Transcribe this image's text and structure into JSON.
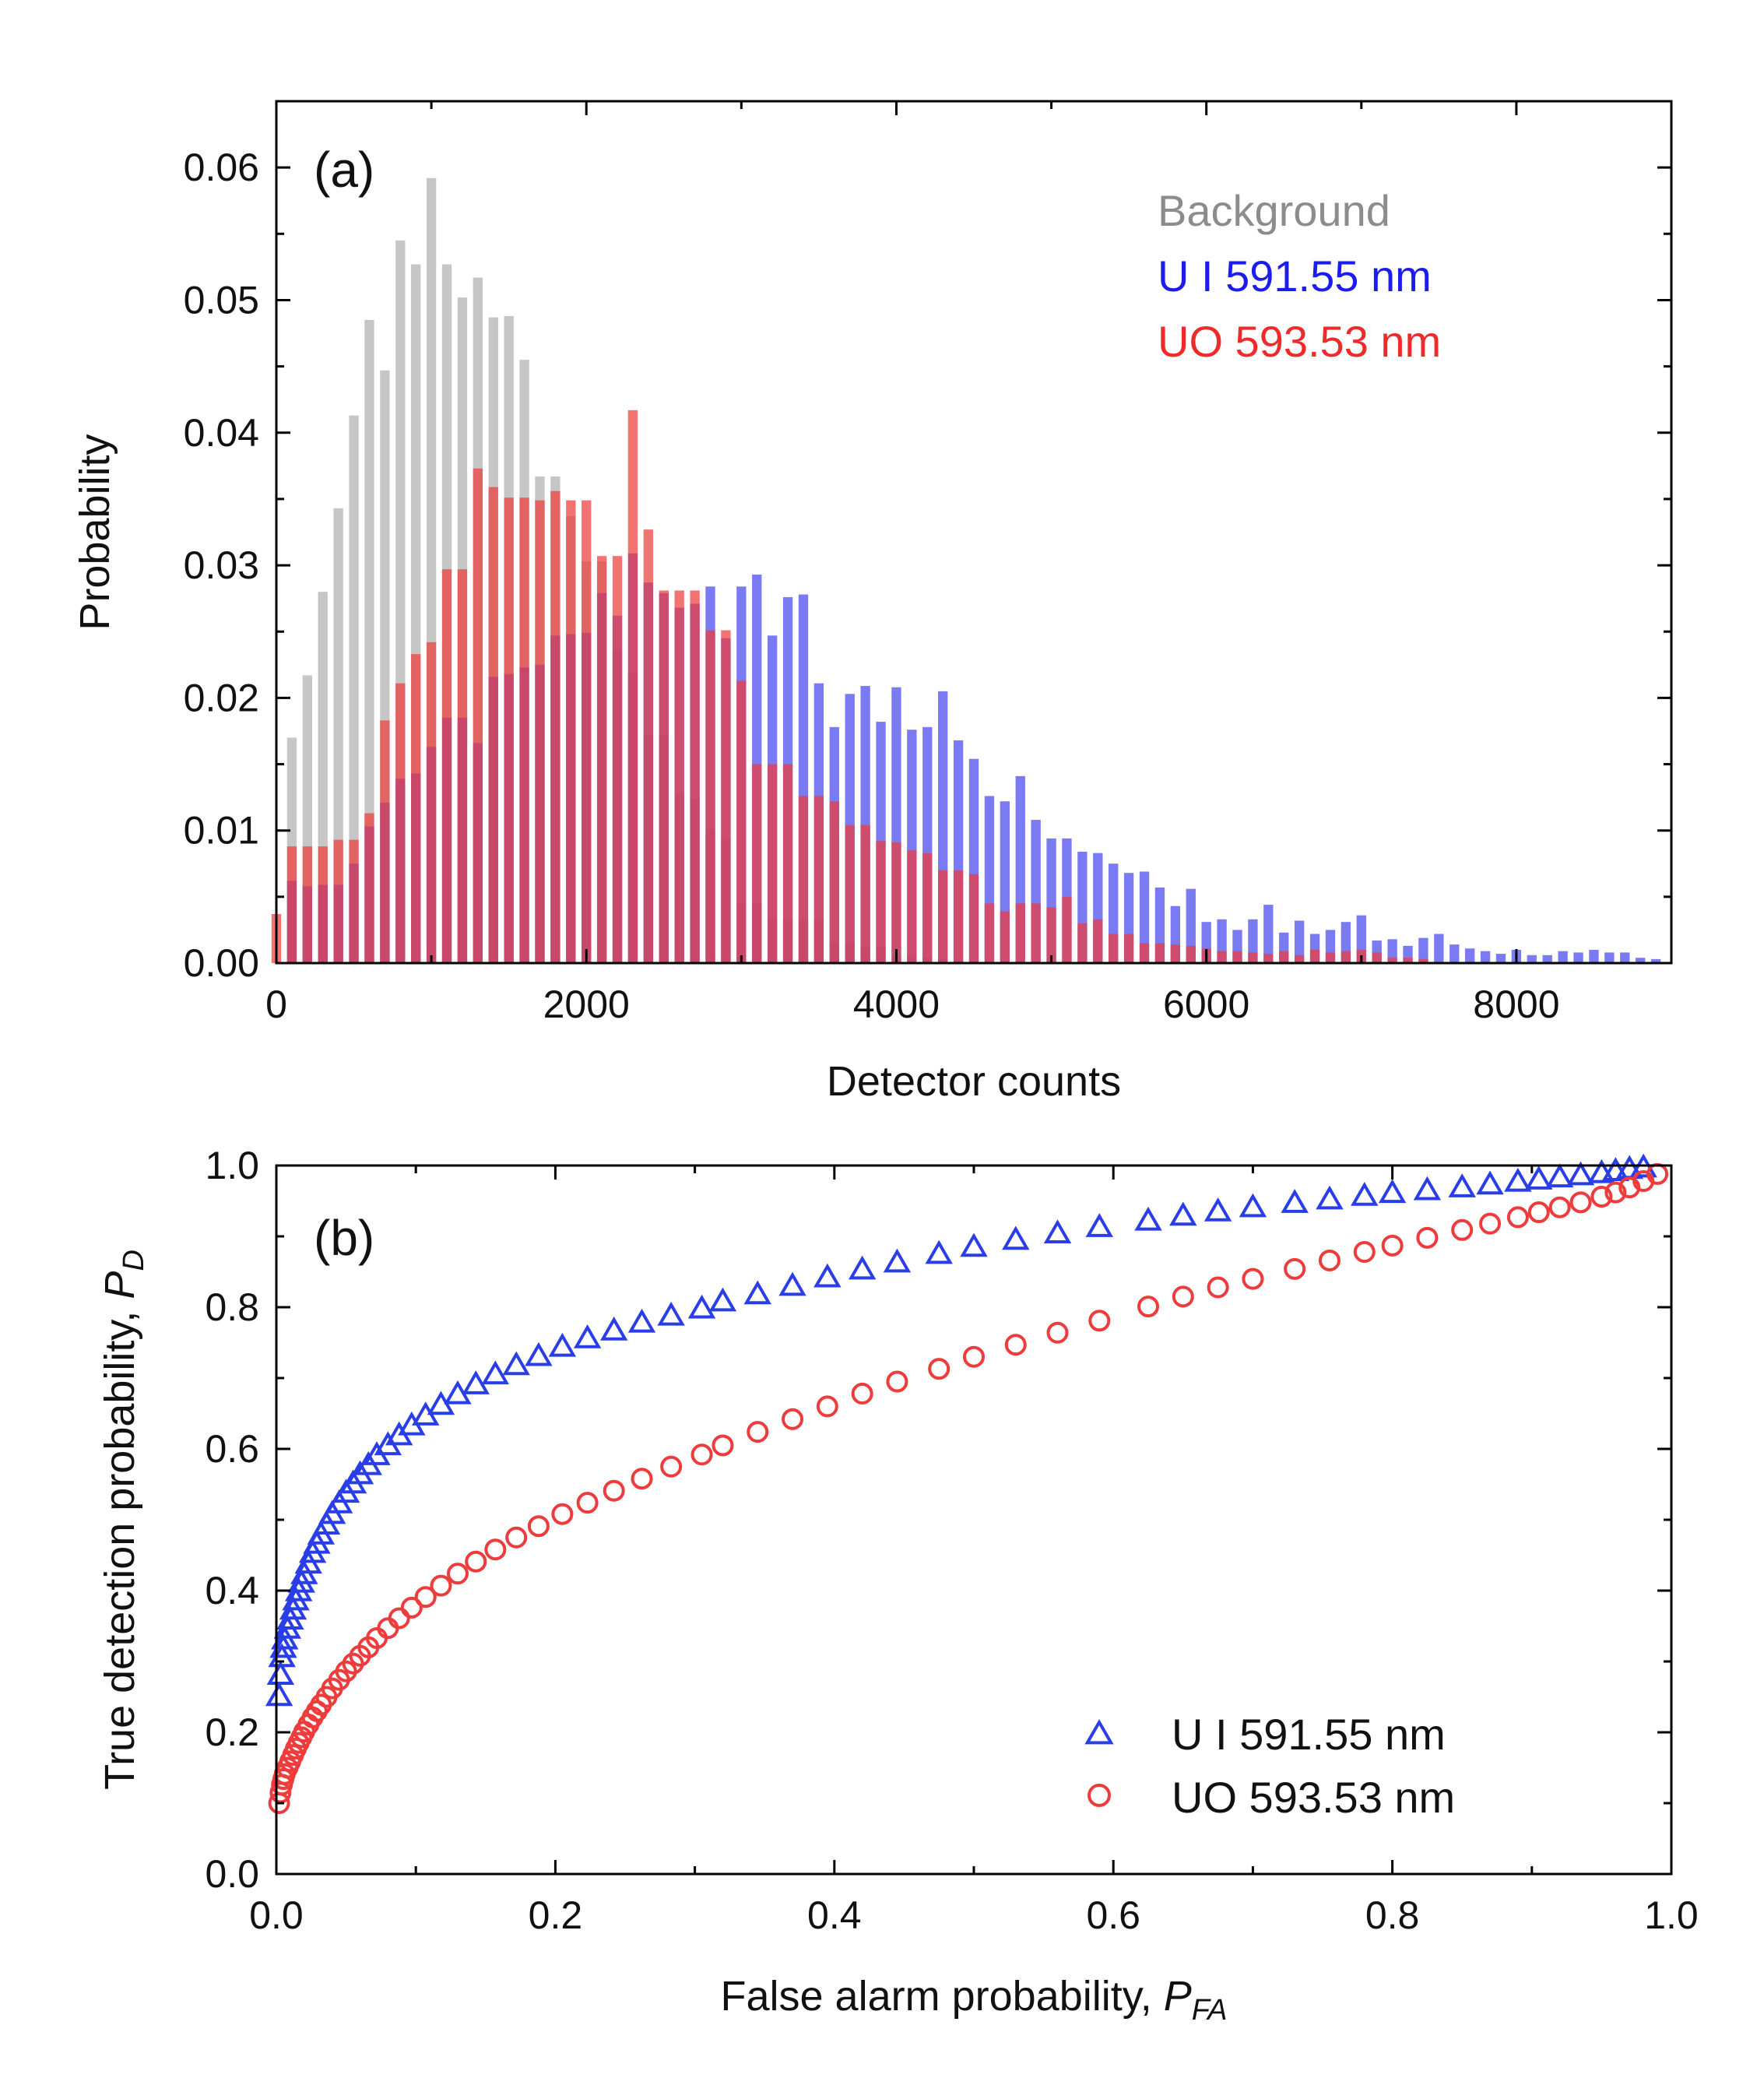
{
  "chart_data": [
    {
      "panel": "(a)",
      "type": "bar",
      "title": "",
      "xlabel": "Detector counts",
      "ylabel": "Probability",
      "xlim": [
        0,
        9000
      ],
      "ylim": [
        0,
        0.065
      ],
      "xticks": [
        0,
        2000,
        4000,
        6000,
        8000
      ],
      "xtick_labels": [
        "0",
        "2000",
        "4000",
        "6000",
        "8000"
      ],
      "yticks": [
        0,
        0.01,
        0.02,
        0.03,
        0.04,
        0.05,
        0.06
      ],
      "ytick_labels": [
        "0.00",
        "0.01",
        "0.02",
        "0.03",
        "0.04",
        "0.05",
        "0.06"
      ],
      "bin_width": 100,
      "grid": false,
      "legend_position": "top-right",
      "series": [
        {
          "name": "Background",
          "color": "#b3b3b3",
          "opacity": 0.75,
          "x": [
            100,
            200,
            300,
            400,
            500,
            600,
            700,
            800,
            900,
            1000,
            1100,
            1200,
            1300,
            1400,
            1500,
            1600,
            1700,
            1800,
            1900,
            2000,
            2100,
            2200,
            2300,
            2400,
            2500,
            2600,
            2700,
            2800,
            2900,
            3000,
            3100,
            3200,
            3300,
            3400,
            3500,
            3600,
            3700,
            3800,
            3900,
            4000,
            4100,
            4200,
            4300,
            4400
          ],
          "values": [
            0.017,
            0.0217,
            0.028,
            0.0343,
            0.0413,
            0.0485,
            0.0447,
            0.0545,
            0.0527,
            0.0592,
            0.0527,
            0.0502,
            0.0517,
            0.0487,
            0.0488,
            0.0455,
            0.0367,
            0.0367,
            0.0337,
            0.0303,
            0.0303,
            0.0235,
            0.0219,
            0.0172,
            0.0172,
            0.0128,
            0.0124,
            0.0101,
            0.0094,
            0.0045,
            0.0045,
            0.0033,
            0.0033,
            0.0033,
            0.0033,
            0.0015,
            0.0015,
            0.0012,
            0.0012,
            0.0006,
            0.0006,
            0.0004,
            0.0003,
            0.0002
          ]
        },
        {
          "name": "U I 591.55 nm",
          "color": "#4646ee",
          "opacity": 0.72,
          "x": [
            100,
            200,
            300,
            400,
            500,
            600,
            700,
            800,
            900,
            1000,
            1100,
            1200,
            1300,
            1400,
            1500,
            1600,
            1700,
            1800,
            1900,
            2000,
            2100,
            2200,
            2300,
            2400,
            2500,
            2600,
            2700,
            2800,
            2900,
            3000,
            3100,
            3200,
            3300,
            3400,
            3500,
            3600,
            3700,
            3800,
            3900,
            4000,
            4100,
            4200,
            4300,
            4400,
            4500,
            4600,
            4700,
            4800,
            4900,
            5000,
            5100,
            5200,
            5300,
            5400,
            5500,
            5600,
            5700,
            5800,
            5900,
            6000,
            6100,
            6200,
            6300,
            6400,
            6500,
            6600,
            6700,
            6800,
            6900,
            7000,
            7100,
            7200,
            7300,
            7400,
            7500,
            7600,
            7700,
            7800,
            7900,
            8000,
            8100,
            8200,
            8300,
            8400,
            8500,
            8600,
            8700,
            8800,
            8900
          ],
          "values": [
            0.0062,
            0.0058,
            0.0059,
            0.0059,
            0.0075,
            0.0103,
            0.0121,
            0.0139,
            0.0143,
            0.0163,
            0.0185,
            0.0185,
            0.0166,
            0.0216,
            0.0218,
            0.0223,
            0.0225,
            0.0247,
            0.0248,
            0.0249,
            0.0279,
            0.0262,
            0.0309,
            0.0287,
            0.0279,
            0.0268,
            0.0271,
            0.0284,
            0.0245,
            0.0284,
            0.0293,
            0.0247,
            0.0276,
            0.0278,
            0.0211,
            0.0178,
            0.0203,
            0.0209,
            0.0182,
            0.0208,
            0.0176,
            0.0178,
            0.0205,
            0.0168,
            0.0154,
            0.0126,
            0.0122,
            0.0141,
            0.0108,
            0.0094,
            0.0094,
            0.0084,
            0.0083,
            0.0075,
            0.0068,
            0.0069,
            0.0057,
            0.0043,
            0.0056,
            0.0031,
            0.0033,
            0.0025,
            0.0033,
            0.0044,
            0.0023,
            0.0032,
            0.0022,
            0.0025,
            0.0031,
            0.0036,
            0.0017,
            0.0018,
            0.0013,
            0.0019,
            0.0022,
            0.0014,
            0.0011,
            0.0009,
            0.0007,
            0.001,
            0.0006,
            0.0006,
            0.0009,
            0.0008,
            0.001,
            0.0008,
            0.0008,
            0.0004,
            0.0003
          ]
        },
        {
          "name": "UO 593.53 nm",
          "color": "#ee3b3b",
          "opacity": 0.72,
          "x": [
            0,
            100,
            200,
            300,
            400,
            500,
            600,
            700,
            800,
            900,
            1000,
            1100,
            1200,
            1300,
            1400,
            1500,
            1600,
            1700,
            1800,
            1900,
            2000,
            2100,
            2200,
            2300,
            2400,
            2500,
            2600,
            2700,
            2800,
            2900,
            3000,
            3100,
            3200,
            3300,
            3400,
            3500,
            3600,
            3700,
            3800,
            3900,
            4000,
            4100,
            4200,
            4300,
            4400,
            4500,
            4600,
            4700,
            4800,
            4900,
            5000,
            5100,
            5200,
            5300,
            5400,
            5500,
            5600,
            5700,
            5800,
            5900,
            6000,
            6100,
            6200,
            6300,
            6400,
            6500,
            6600,
            6700,
            6800,
            6900,
            7000,
            7100,
            7200,
            7300,
            7400
          ],
          "values": [
            0.0037,
            0.0088,
            0.0088,
            0.0088,
            0.0093,
            0.0093,
            0.0113,
            0.0183,
            0.0211,
            0.0233,
            0.0242,
            0.0297,
            0.0297,
            0.0373,
            0.0359,
            0.0351,
            0.0351,
            0.0349,
            0.0356,
            0.0349,
            0.0349,
            0.0307,
            0.0307,
            0.0417,
            0.0327,
            0.0281,
            0.0281,
            0.0281,
            0.0251,
            0.0251,
            0.0213,
            0.015,
            0.015,
            0.015,
            0.0126,
            0.0126,
            0.0122,
            0.0104,
            0.0104,
            0.0092,
            0.0091,
            0.0085,
            0.0083,
            0.007,
            0.007,
            0.0067,
            0.0045,
            0.0039,
            0.0045,
            0.0045,
            0.0042,
            0.005,
            0.003,
            0.0033,
            0.0022,
            0.0022,
            0.0015,
            0.0015,
            0.0014,
            0.0013,
            0.0011,
            0.0009,
            0.0009,
            0.0008,
            0.0007,
            0.0009,
            0.0006,
            0.001,
            0.0008,
            0.0009,
            0.001,
            0.0008,
            0.0004,
            0.0004,
            0.0003
          ]
        }
      ]
    },
    {
      "panel": "(b)",
      "type": "scatter",
      "title": "",
      "xlabel_text": "False alarm probability, ",
      "xlabel_symbol": "P",
      "xlabel_subscript": "FA",
      "ylabel_text": "True detection probability, ",
      "ylabel_symbol": "P",
      "ylabel_subscript": "D",
      "xlim": [
        0,
        1
      ],
      "ylim": [
        0,
        1
      ],
      "xticks": [
        0,
        0.2,
        0.4,
        0.6,
        0.8,
        1.0
      ],
      "xtick_labels": [
        "0.0",
        "0.2",
        "0.4",
        "0.6",
        "0.8",
        "1.0"
      ],
      "yticks": [
        0,
        0.2,
        0.4,
        0.6,
        0.8,
        1.0
      ],
      "ytick_labels": [
        "0.0",
        "0.2",
        "0.4",
        "0.6",
        "0.8",
        "1.0"
      ],
      "grid": false,
      "legend_position": "bottom-right",
      "series": [
        {
          "name": "U I 591.55 nm",
          "marker": "triangle",
          "color": "#2a3ee8",
          "x": [
            0.002,
            0.003,
            0.004,
            0.005,
            0.006,
            0.008,
            0.01,
            0.012,
            0.014,
            0.016,
            0.018,
            0.02,
            0.023,
            0.026,
            0.029,
            0.032,
            0.036,
            0.04,
            0.045,
            0.05,
            0.055,
            0.06,
            0.066,
            0.072,
            0.08,
            0.088,
            0.097,
            0.107,
            0.118,
            0.13,
            0.143,
            0.157,
            0.172,
            0.188,
            0.205,
            0.223,
            0.242,
            0.262,
            0.283,
            0.305,
            0.32,
            0.345,
            0.37,
            0.395,
            0.42,
            0.445,
            0.475,
            0.5,
            0.53,
            0.56,
            0.59,
            0.625,
            0.65,
            0.675,
            0.7,
            0.73,
            0.755,
            0.78,
            0.8,
            0.825,
            0.85,
            0.87,
            0.89,
            0.905,
            0.92,
            0.935,
            0.95,
            0.96,
            0.97,
            0.98
          ],
          "y": [
            0.25,
            0.28,
            0.305,
            0.318,
            0.33,
            0.345,
            0.358,
            0.372,
            0.385,
            0.398,
            0.41,
            0.422,
            0.437,
            0.452,
            0.465,
            0.478,
            0.492,
            0.507,
            0.522,
            0.537,
            0.55,
            0.563,
            0.576,
            0.59,
            0.604,
            0.618,
            0.632,
            0.646,
            0.661,
            0.676,
            0.69,
            0.704,
            0.717,
            0.73,
            0.743,
            0.755,
            0.766,
            0.777,
            0.787,
            0.797,
            0.807,
            0.817,
            0.829,
            0.841,
            0.852,
            0.862,
            0.874,
            0.884,
            0.894,
            0.903,
            0.912,
            0.921,
            0.928,
            0.934,
            0.94,
            0.946,
            0.951,
            0.956,
            0.96,
            0.964,
            0.968,
            0.972,
            0.976,
            0.979,
            0.982,
            0.985,
            0.988,
            0.991,
            0.994,
            0.996
          ]
        },
        {
          "name": "UO 593.53 nm",
          "marker": "circle",
          "color": "#ee3b3b",
          "x": [
            0.002,
            0.003,
            0.004,
            0.005,
            0.006,
            0.008,
            0.01,
            0.012,
            0.014,
            0.016,
            0.018,
            0.02,
            0.023,
            0.026,
            0.029,
            0.032,
            0.036,
            0.04,
            0.045,
            0.05,
            0.055,
            0.06,
            0.066,
            0.072,
            0.08,
            0.088,
            0.097,
            0.107,
            0.118,
            0.13,
            0.143,
            0.157,
            0.172,
            0.188,
            0.205,
            0.223,
            0.242,
            0.262,
            0.283,
            0.305,
            0.32,
            0.345,
            0.37,
            0.395,
            0.42,
            0.445,
            0.475,
            0.5,
            0.53,
            0.56,
            0.59,
            0.625,
            0.65,
            0.675,
            0.7,
            0.73,
            0.755,
            0.78,
            0.8,
            0.825,
            0.85,
            0.87,
            0.89,
            0.905,
            0.92,
            0.935,
            0.95,
            0.96,
            0.97,
            0.98,
            0.99
          ],
          "y": [
            0.1,
            0.115,
            0.126,
            0.134,
            0.141,
            0.15,
            0.159,
            0.168,
            0.177,
            0.185,
            0.193,
            0.201,
            0.211,
            0.221,
            0.23,
            0.239,
            0.25,
            0.262,
            0.274,
            0.286,
            0.297,
            0.308,
            0.32,
            0.333,
            0.347,
            0.361,
            0.376,
            0.391,
            0.407,
            0.424,
            0.441,
            0.458,
            0.475,
            0.491,
            0.508,
            0.524,
            0.541,
            0.558,
            0.575,
            0.592,
            0.605,
            0.624,
            0.642,
            0.66,
            0.678,
            0.695,
            0.713,
            0.73,
            0.747,
            0.764,
            0.781,
            0.801,
            0.815,
            0.828,
            0.84,
            0.854,
            0.866,
            0.878,
            0.887,
            0.898,
            0.909,
            0.918,
            0.927,
            0.934,
            0.941,
            0.948,
            0.956,
            0.962,
            0.969,
            0.978,
            0.988
          ]
        }
      ]
    }
  ]
}
